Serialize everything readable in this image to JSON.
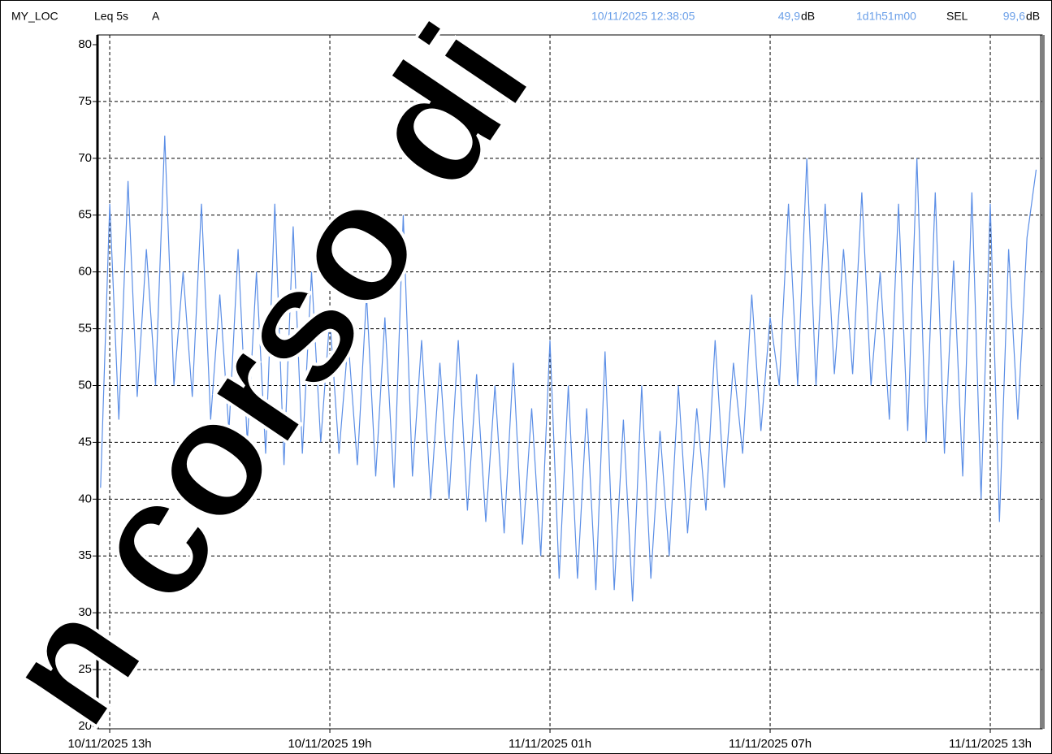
{
  "chart_data": {
    "type": "line",
    "location": "MY_LOC",
    "metric": "Leq 5s",
    "weighting": "A",
    "cursor_time": "10/11/2025 12:38:05",
    "cursor_value": "49,9",
    "cursor_unit": "dB",
    "duration": "1d1h51m00",
    "sel_label": "SEL",
    "sel_value": "99,6",
    "sel_unit": "dB",
    "x": [
      "2025-11-10T12:45",
      "2025-11-10T13:00",
      "2025-11-10T13:15",
      "2025-11-10T13:30",
      "2025-11-10T13:45",
      "2025-11-10T14:00",
      "2025-11-10T14:15",
      "2025-11-10T14:30",
      "2025-11-10T14:45",
      "2025-11-10T15:00",
      "2025-11-10T15:15",
      "2025-11-10T15:30",
      "2025-11-10T15:45",
      "2025-11-10T16:00",
      "2025-11-10T16:15",
      "2025-11-10T16:30",
      "2025-11-10T16:45",
      "2025-11-10T17:00",
      "2025-11-10T17:15",
      "2025-11-10T17:30",
      "2025-11-10T17:45",
      "2025-11-10T18:00",
      "2025-11-10T18:15",
      "2025-11-10T18:30",
      "2025-11-10T18:45",
      "2025-11-10T19:00",
      "2025-11-10T19:15",
      "2025-11-10T19:30",
      "2025-11-10T19:45",
      "2025-11-10T20:00",
      "2025-11-10T20:15",
      "2025-11-10T20:30",
      "2025-11-10T20:45",
      "2025-11-10T21:00",
      "2025-11-10T21:15",
      "2025-11-10T21:30",
      "2025-11-10T21:45",
      "2025-11-10T22:00",
      "2025-11-10T22:15",
      "2025-11-10T22:30",
      "2025-11-10T22:45",
      "2025-11-10T23:00",
      "2025-11-10T23:15",
      "2025-11-10T23:30",
      "2025-11-10T23:45",
      "2025-11-11T00:00",
      "2025-11-11T00:15",
      "2025-11-11T00:30",
      "2025-11-11T00:45",
      "2025-11-11T01:00",
      "2025-11-11T01:15",
      "2025-11-11T01:30",
      "2025-11-11T01:45",
      "2025-11-11T02:00",
      "2025-11-11T02:15",
      "2025-11-11T02:30",
      "2025-11-11T02:45",
      "2025-11-11T03:00",
      "2025-11-11T03:15",
      "2025-11-11T03:30",
      "2025-11-11T03:45",
      "2025-11-11T04:00",
      "2025-11-11T04:15",
      "2025-11-11T04:30",
      "2025-11-11T04:45",
      "2025-11-11T05:00",
      "2025-11-11T05:15",
      "2025-11-11T05:30",
      "2025-11-11T05:45",
      "2025-11-11T06:00",
      "2025-11-11T06:15",
      "2025-11-11T06:30",
      "2025-11-11T06:45",
      "2025-11-11T07:00",
      "2025-11-11T07:15",
      "2025-11-11T07:30",
      "2025-11-11T07:45",
      "2025-11-11T08:00",
      "2025-11-11T08:15",
      "2025-11-11T08:30",
      "2025-11-11T08:45",
      "2025-11-11T09:00",
      "2025-11-11T09:15",
      "2025-11-11T09:30",
      "2025-11-11T09:45",
      "2025-11-11T10:00",
      "2025-11-11T10:15",
      "2025-11-11T10:30",
      "2025-11-11T10:45",
      "2025-11-11T11:00",
      "2025-11-11T11:15",
      "2025-11-11T11:30",
      "2025-11-11T11:45",
      "2025-11-11T12:00",
      "2025-11-11T12:15",
      "2025-11-11T12:30",
      "2025-11-11T12:45",
      "2025-11-11T13:00",
      "2025-11-11T13:15",
      "2025-11-11T13:30",
      "2025-11-11T13:45",
      "2025-11-11T14:00",
      "2025-11-11T14:15"
    ],
    "series": [
      {
        "color": "#5b8ee6",
        "values": [
          41,
          66,
          47,
          68,
          49,
          62,
          50,
          72,
          50,
          60,
          49,
          66,
          47,
          58,
          46,
          62,
          45,
          60,
          44,
          66,
          43,
          64,
          44,
          60,
          45,
          56,
          44,
          54,
          43,
          58,
          42,
          56,
          41,
          65,
          42,
          54,
          40,
          52,
          40,
          54,
          39,
          51,
          38,
          50,
          37,
          52,
          36,
          48,
          35,
          54,
          33,
          50,
          33,
          48,
          32,
          53,
          32,
          47,
          31,
          50,
          33,
          46,
          35,
          50,
          37,
          48,
          39,
          54,
          41,
          52,
          44,
          58,
          46,
          56,
          50,
          66,
          50,
          70,
          50,
          66,
          51,
          62,
          51,
          67,
          50,
          60,
          47,
          66,
          46,
          70,
          45,
          67,
          44,
          61,
          42,
          67,
          40,
          66,
          38,
          62,
          47,
          63,
          69
        ]
      }
    ],
    "xlim": [
      "2025-11-10T12:40",
      "2025-11-11T14:25"
    ],
    "xticks": [
      {
        "value": "2025-11-10T13:00",
        "label": "10/11/2025 13h"
      },
      {
        "value": "2025-11-10T19:00",
        "label": "10/11/2025 19h"
      },
      {
        "value": "2025-11-11T01:00",
        "label": "11/11/2025 01h"
      },
      {
        "value": "2025-11-11T07:00",
        "label": "11/11/2025 07h"
      },
      {
        "value": "2025-11-11T13:00",
        "label": "11/11/2025 13h"
      }
    ],
    "ylim": [
      20,
      80
    ],
    "yticks": [
      20,
      25,
      30,
      35,
      40,
      45,
      50,
      55,
      60,
      65,
      70,
      75,
      80
    ],
    "grid": true
  },
  "watermark": "n corso di"
}
